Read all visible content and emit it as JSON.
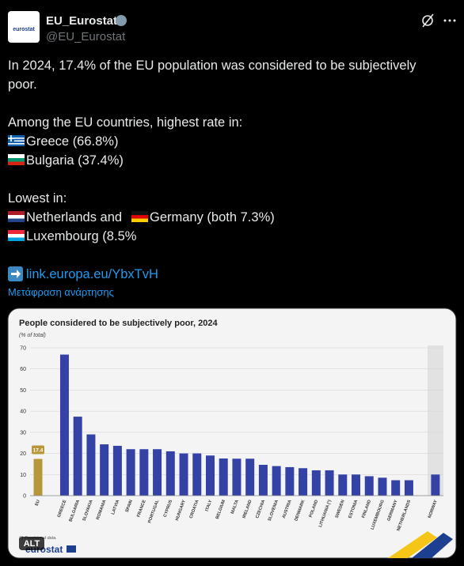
{
  "author": {
    "name": "EU_Eurostat",
    "handle": "@EU_Eurostat",
    "avatar_text": "eurostat"
  },
  "post": {
    "lines": [
      "In 2024, 17.4% of the EU population was considered to be subjectively",
      "poor.",
      "Among the EU countries, highest rate in:",
      "Greece (66.8%)",
      "Bulgaria (37.4%)",
      "Lowest in:",
      "Netherlands and",
      "Germany (both 7.3%)",
      "Luxembourg (8.5%"
    ],
    "link": "link.europa.eu/YbxTvH",
    "translate": "Μετάφραση ανάρτησης"
  },
  "chart_data": {
    "type": "bar",
    "title": "People considered to be subjectively poor, 2024",
    "subtitle": "(% of total)",
    "categories": [
      "EU",
      "GREECE",
      "BULGARIA",
      "SLOVAKIA",
      "ROMANIA",
      "LATVIA",
      "SPAIN",
      "FRANCE",
      "PORTUGAL",
      "CYPRUS",
      "HUNGARY",
      "CROATIA",
      "ITALY",
      "BELGIUM",
      "MALTA",
      "IRELAND",
      "CZECHIA",
      "SLOVENIA",
      "AUSTRIA",
      "DENMARK",
      "POLAND",
      "LITHUANIA (¹)",
      "SWEDEN",
      "ESTONIA",
      "FINLAND",
      "LUXEMBOURG",
      "GERMANY",
      "NETHERLANDS",
      "NORWAY"
    ],
    "values": [
      17.4,
      66.8,
      37.4,
      29,
      24.3,
      23.6,
      22,
      22,
      22,
      21,
      20,
      20,
      19,
      17.6,
      17.5,
      17.5,
      14.6,
      14,
      13.5,
      13,
      12,
      12,
      10,
      10,
      9.2,
      8.5,
      7.3,
      7.3,
      10
    ],
    "colors": [
      "#b8963a",
      "#3442a6",
      "#3442a6",
      "#3442a6",
      "#3442a6",
      "#3442a6",
      "#3442a6",
      "#3442a6",
      "#3442a6",
      "#3442a6",
      "#3442a6",
      "#3442a6",
      "#3442a6",
      "#3442a6",
      "#3442a6",
      "#3442a6",
      "#3442a6",
      "#3442a6",
      "#3442a6",
      "#3442a6",
      "#3442a6",
      "#3442a6",
      "#3442a6",
      "#3442a6",
      "#3442a6",
      "#3442a6",
      "#3442a6",
      "#3442a6",
      "#3442a6"
    ],
    "ylim": [
      0,
      70
    ],
    "yticks": [
      0,
      10,
      20,
      30,
      40,
      50,
      60,
      70
    ],
    "grid": true
  },
  "image": {
    "footnote": "(¹) Provisional data.",
    "brand": "eurostat",
    "alt_badge": "ALT"
  }
}
